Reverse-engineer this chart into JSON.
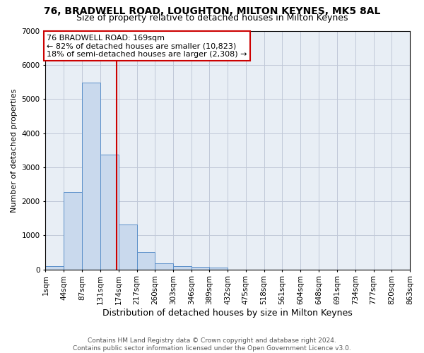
{
  "title1": "76, BRADWELL ROAD, LOUGHTON, MILTON KEYNES, MK5 8AL",
  "title2": "Size of property relative to detached houses in Milton Keynes",
  "xlabel": "Distribution of detached houses by size in Milton Keynes",
  "ylabel": "Number of detached properties",
  "bar_color": "#c9d9ed",
  "bar_edge_color": "#5b8fc9",
  "grid_color": "#c0c8d8",
  "bg_color": "#e8eef5",
  "annotation_line_color": "#cc0000",
  "annotation_text": "76 BRADWELL ROAD: 169sqm\n← 82% of detached houses are smaller (10,823)\n18% of semi-detached houses are larger (2,308) →",
  "property_sqm": 169,
  "bin_edges": [
    1,
    44,
    87,
    131,
    174,
    217,
    260,
    303,
    346,
    389,
    432,
    475,
    518,
    561,
    604,
    648,
    691,
    734,
    777,
    820,
    863
  ],
  "bar_heights": [
    100,
    2270,
    5480,
    3380,
    1310,
    510,
    185,
    100,
    75,
    60,
    0,
    0,
    0,
    0,
    0,
    0,
    0,
    0,
    0,
    0
  ],
  "ylim": [
    0,
    7000
  ],
  "yticks": [
    0,
    1000,
    2000,
    3000,
    4000,
    5000,
    6000,
    7000
  ],
  "footer_text": "Contains HM Land Registry data © Crown copyright and database right 2024.\nContains public sector information licensed under the Open Government Licence v3.0.",
  "title1_fontsize": 10,
  "title2_fontsize": 9,
  "xlabel_fontsize": 9,
  "ylabel_fontsize": 8,
  "tick_fontsize": 7.5,
  "annotation_fontsize": 8,
  "footer_fontsize": 6.5
}
